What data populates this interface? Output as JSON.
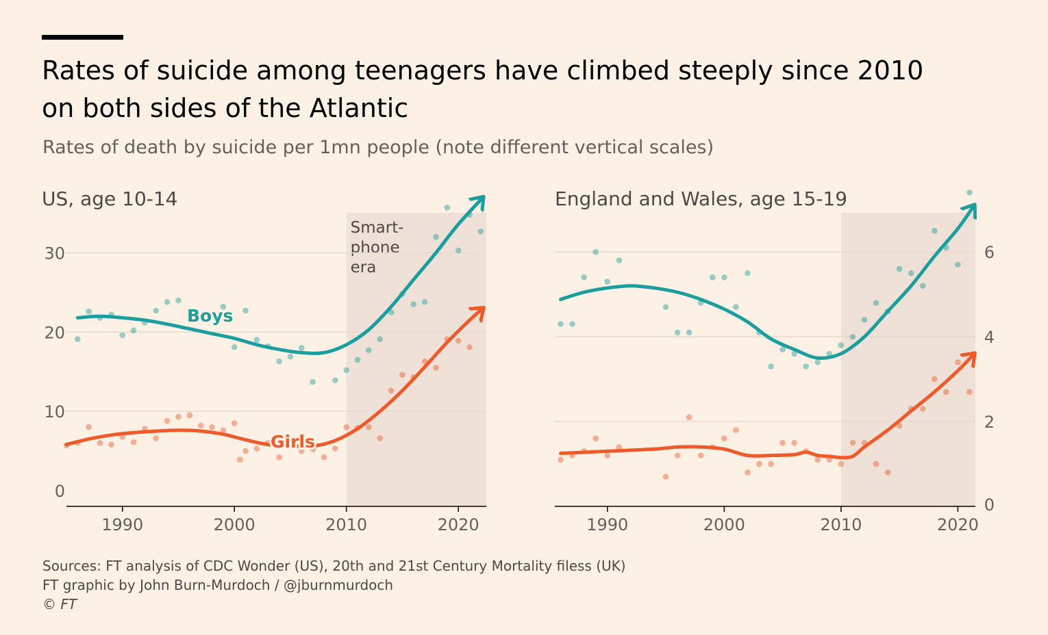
{
  "header": {
    "title_line1": "Rates of suicide among teenagers have climbed steeply since 2010",
    "title_line2": "on both sides of the Atlantic",
    "subtitle": "Rates of death by suicide per 1mn people (note different vertical scales)"
  },
  "colors": {
    "boys": "#1A9E9E",
    "girls": "#EE5A2A",
    "background": "#FDF1E5",
    "shade": "#EFE1D8"
  },
  "footer": {
    "line1": "Sources: FT analysis of CDC Wonder (US), 20th and 21st Century Mortality filess (UK)",
    "line2": "FT graphic by John Burn-Murdoch / @jburnmurdoch",
    "line3": "© FT"
  },
  "chart_data": [
    {
      "type": "scatter",
      "title": "US, age 10-14",
      "xlim": [
        1985,
        2022.5
      ],
      "ylim": [
        -2,
        36
      ],
      "xticks": [
        1990,
        2000,
        2010,
        2020
      ],
      "yticks": [
        0,
        10,
        20,
        30
      ],
      "y_axis_side": "left",
      "shaded_region": {
        "x_from": 2010,
        "x_to": 2022.5,
        "label_lines": [
          "Smart-",
          "phone",
          "era"
        ]
      },
      "series": [
        {
          "name": "Boys",
          "color": "#1A9E9E",
          "points": [
            [
              1986,
              19.1
            ],
            [
              1987,
              22.6
            ],
            [
              1988,
              21.8
            ],
            [
              1989,
              22.2
            ],
            [
              1990,
              19.6
            ],
            [
              1991,
              20.2
            ],
            [
              1992,
              21.2
            ],
            [
              1993,
              22.7
            ],
            [
              1994,
              23.8
            ],
            [
              1995,
              24.0
            ],
            [
              1999,
              23.2
            ],
            [
              2000,
              18.1
            ],
            [
              2001,
              22.7
            ],
            [
              2002,
              19.0
            ],
            [
              2003,
              18.2
            ],
            [
              2004,
              16.3
            ],
            [
              2005,
              16.9
            ],
            [
              2006,
              18.0
            ],
            [
              2007,
              13.7
            ],
            [
              2009,
              13.9
            ],
            [
              2010,
              15.2
            ],
            [
              2011,
              16.5
            ],
            [
              2012,
              17.7
            ],
            [
              2013,
              19.1
            ],
            [
              2014,
              22.5
            ],
            [
              2015,
              24.8
            ],
            [
              2016,
              23.5
            ],
            [
              2017,
              23.8
            ],
            [
              2018,
              32.0
            ],
            [
              2019,
              35.7
            ],
            [
              2020,
              30.3
            ],
            [
              2021,
              34.8
            ],
            [
              2022,
              32.7
            ]
          ],
          "trend": [
            [
              1986,
              21.8
            ],
            [
              1988,
              22.0
            ],
            [
              1990,
              21.8
            ],
            [
              1992,
              21.5
            ],
            [
              1994,
              21.0
            ],
            [
              1996,
              20.4
            ],
            [
              1998,
              19.8
            ],
            [
              2000,
              19.2
            ],
            [
              2002,
              18.4
            ],
            [
              2004,
              17.8
            ],
            [
              2006,
              17.4
            ],
            [
              2008,
              17.4
            ],
            [
              2010,
              18.4
            ],
            [
              2012,
              20.3
            ],
            [
              2014,
              23.2
            ],
            [
              2016,
              26.6
            ],
            [
              2018,
              30.0
            ],
            [
              2020,
              33.6
            ],
            [
              2022.2,
              37.0
            ]
          ]
        },
        {
          "name": "Girls",
          "color": "#EE5A2A",
          "points": [
            [
              1985,
              5.7
            ],
            [
              1986,
              6.0
            ],
            [
              1987,
              8.0
            ],
            [
              1988,
              6.0
            ],
            [
              1989,
              5.8
            ],
            [
              1990,
              6.8
            ],
            [
              1991,
              6.1
            ],
            [
              1992,
              7.8
            ],
            [
              1993,
              6.6
            ],
            [
              1994,
              8.8
            ],
            [
              1995,
              9.3
            ],
            [
              1996,
              9.5
            ],
            [
              1997,
              8.2
            ],
            [
              1998,
              8.0
            ],
            [
              1999,
              7.6
            ],
            [
              2000,
              8.5
            ],
            [
              2000.5,
              3.9
            ],
            [
              2001,
              5.0
            ],
            [
              2002,
              5.3
            ],
            [
              2003,
              6.0
            ],
            [
              2004,
              4.2
            ],
            [
              2005,
              5.5
            ],
            [
              2006,
              5.0
            ],
            [
              2007,
              5.2
            ],
            [
              2008,
              4.2
            ],
            [
              2009,
              5.3
            ],
            [
              2010,
              8.0
            ],
            [
              2011,
              7.9
            ],
            [
              2012,
              8.0
            ],
            [
              2013,
              6.6
            ],
            [
              2014,
              12.6
            ],
            [
              2015,
              14.6
            ],
            [
              2016,
              14.3
            ],
            [
              2017,
              16.3
            ],
            [
              2018,
              15.5
            ],
            [
              2019,
              19.1
            ],
            [
              2020,
              18.9
            ],
            [
              2021,
              18.1
            ]
          ],
          "trend": [
            [
              1985,
              5.8
            ],
            [
              1987,
              6.5
            ],
            [
              1989,
              7.0
            ],
            [
              1991,
              7.3
            ],
            [
              1993,
              7.5
            ],
            [
              1995,
              7.6
            ],
            [
              1997,
              7.5
            ],
            [
              1999,
              7.1
            ],
            [
              2001,
              6.4
            ],
            [
              2003,
              5.8
            ],
            [
              2005,
              5.6
            ],
            [
              2007,
              5.6
            ],
            [
              2009,
              6.3
            ],
            [
              2011,
              7.8
            ],
            [
              2013,
              10.0
            ],
            [
              2015,
              12.6
            ],
            [
              2017,
              15.6
            ],
            [
              2019,
              18.7
            ],
            [
              2021,
              21.5
            ],
            [
              2022.2,
              23.0
            ]
          ]
        }
      ]
    },
    {
      "type": "scatter",
      "title": "England and Wales, age 15-19",
      "xlim": [
        1985.5,
        2021.5
      ],
      "ylim": [
        0,
        7.1
      ],
      "xticks": [
        1990,
        2000,
        2010,
        2020
      ],
      "yticks": [
        0,
        2,
        4,
        6
      ],
      "y_axis_side": "right",
      "shaded_region": {
        "x_from": 2010,
        "x_to": 2021.5
      },
      "series": [
        {
          "name": "",
          "color": "#1A9E9E",
          "points": [
            [
              1986,
              4.3
            ],
            [
              1987,
              4.3
            ],
            [
              1988,
              5.4
            ],
            [
              1989,
              6.0
            ],
            [
              1990,
              5.3
            ],
            [
              1991,
              5.8
            ],
            [
              1995,
              4.7
            ],
            [
              1996,
              4.1
            ],
            [
              1997,
              4.1
            ],
            [
              1998,
              4.8
            ],
            [
              1999,
              5.4
            ],
            [
              2000,
              5.4
            ],
            [
              2001,
              4.7
            ],
            [
              2002,
              5.5
            ],
            [
              2003,
              4.1
            ],
            [
              2004,
              3.3
            ],
            [
              2005,
              3.7
            ],
            [
              2006,
              3.6
            ],
            [
              2007,
              3.3
            ],
            [
              2008,
              3.4
            ],
            [
              2009,
              3.6
            ],
            [
              2010,
              3.8
            ],
            [
              2011,
              4.0
            ],
            [
              2012,
              4.4
            ],
            [
              2013,
              4.8
            ],
            [
              2014,
              4.6
            ],
            [
              2015,
              5.6
            ],
            [
              2016,
              5.5
            ],
            [
              2017,
              5.2
            ],
            [
              2018,
              6.5
            ],
            [
              2019,
              6.1
            ],
            [
              2020,
              5.7
            ],
            [
              2021,
              7.4
            ]
          ],
          "trend": [
            [
              1986,
              4.88
            ],
            [
              1988,
              5.05
            ],
            [
              1990,
              5.15
            ],
            [
              1992,
              5.2
            ],
            [
              1994,
              5.15
            ],
            [
              1996,
              5.05
            ],
            [
              1998,
              4.88
            ],
            [
              2000,
              4.65
            ],
            [
              2002,
              4.35
            ],
            [
              2004,
              3.95
            ],
            [
              2006,
              3.7
            ],
            [
              2008,
              3.5
            ],
            [
              2010,
              3.6
            ],
            [
              2012,
              4.0
            ],
            [
              2014,
              4.6
            ],
            [
              2016,
              5.2
            ],
            [
              2018,
              5.9
            ],
            [
              2020,
              6.55
            ],
            [
              2021.4,
              7.1
            ]
          ]
        },
        {
          "name": "",
          "color": "#EE5A2A",
          "points": [
            [
              1986,
              1.1
            ],
            [
              1987,
              1.2
            ],
            [
              1988,
              1.3
            ],
            [
              1989,
              1.6
            ],
            [
              1990,
              1.2
            ],
            [
              1991,
              1.4
            ],
            [
              1995,
              0.7
            ],
            [
              1996,
              1.2
            ],
            [
              1997,
              2.1
            ],
            [
              1998,
              1.2
            ],
            [
              1999,
              1.4
            ],
            [
              2000,
              1.6
            ],
            [
              2001,
              1.8
            ],
            [
              2002,
              0.8
            ],
            [
              2003,
              1.0
            ],
            [
              2004,
              1.0
            ],
            [
              2005,
              1.5
            ],
            [
              2006,
              1.5
            ],
            [
              2007,
              1.3
            ],
            [
              2008,
              1.1
            ],
            [
              2009,
              1.1
            ],
            [
              2010,
              1.0
            ],
            [
              2011,
              1.5
            ],
            [
              2012,
              1.5
            ],
            [
              2013,
              1.0
            ],
            [
              2014,
              0.8
            ],
            [
              2015,
              1.9
            ],
            [
              2016,
              2.3
            ],
            [
              2017,
              2.3
            ],
            [
              2018,
              3.0
            ],
            [
              2019,
              2.7
            ],
            [
              2020,
              3.4
            ],
            [
              2021,
              2.7
            ]
          ],
          "trend": [
            [
              1986,
              1.25
            ],
            [
              1990,
              1.3
            ],
            [
              1994,
              1.35
            ],
            [
              1996,
              1.4
            ],
            [
              1998,
              1.4
            ],
            [
              2000,
              1.35
            ],
            [
              2002,
              1.2
            ],
            [
              2004,
              1.2
            ],
            [
              2006,
              1.22
            ],
            [
              2007,
              1.28
            ],
            [
              2008,
              1.2
            ],
            [
              2009,
              1.18
            ],
            [
              2010,
              1.15
            ],
            [
              2011,
              1.18
            ],
            [
              2012,
              1.4
            ],
            [
              2014,
              1.8
            ],
            [
              2016,
              2.25
            ],
            [
              2018,
              2.7
            ],
            [
              2020,
              3.2
            ],
            [
              2021.4,
              3.6
            ]
          ]
        }
      ]
    }
  ]
}
